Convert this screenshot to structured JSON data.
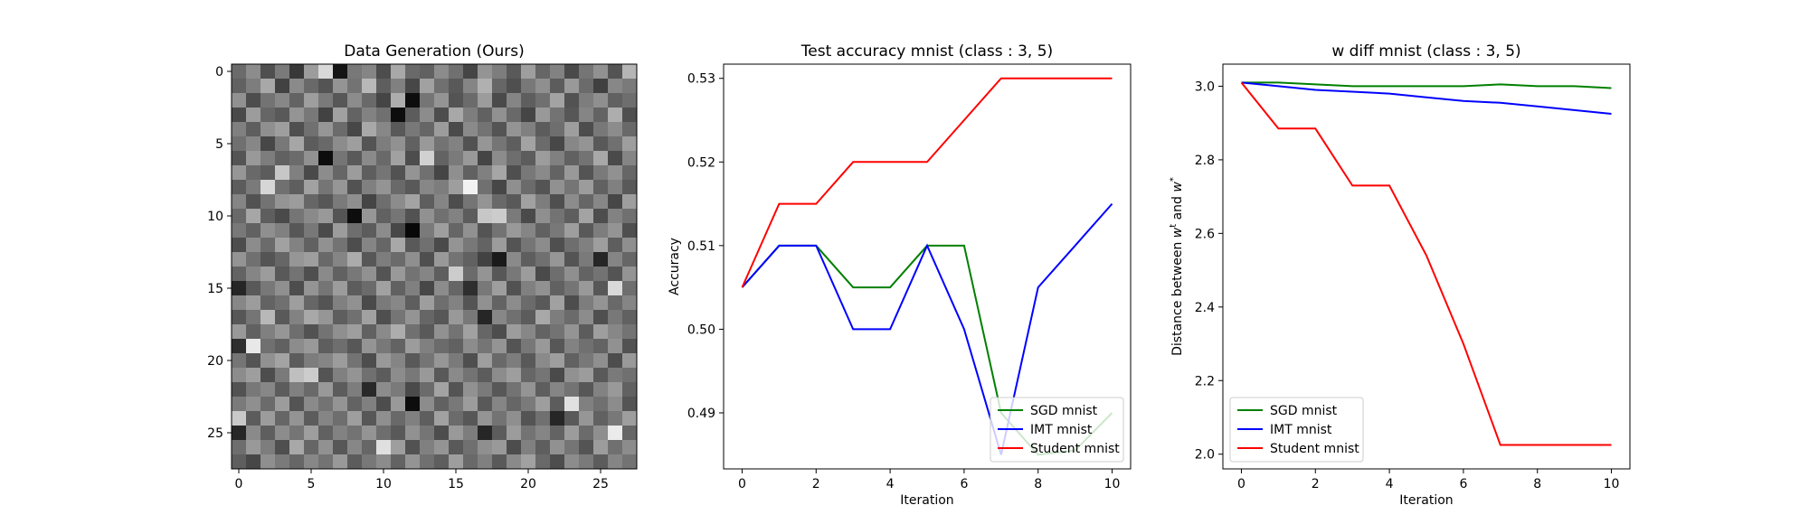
{
  "chart_data": [
    {
      "type": "heatmap",
      "title": "Data Generation (Ours)",
      "rows": 28,
      "cols": 28,
      "colormap": "gray",
      "xticks": [
        0,
        5,
        10,
        15,
        20,
        25
      ],
      "yticks": [
        0,
        5,
        10,
        15,
        20,
        25
      ],
      "xlim": [
        -0.5,
        27.5
      ],
      "ylim": [
        27.5,
        -0.5
      ],
      "values": [
        [
          0.42,
          0.55,
          0.31,
          0.48,
          0.22,
          0.61,
          0.85,
          0.08,
          0.47,
          0.52,
          0.3,
          0.66,
          0.41,
          0.38,
          0.55,
          0.44,
          0.27,
          0.58,
          0.49,
          0.35,
          0.62,
          0.4,
          0.51,
          0.29,
          0.46,
          0.57,
          0.33,
          0.71
        ],
        [
          0.38,
          0.49,
          0.66,
          0.26,
          0.54,
          0.41,
          0.33,
          0.58,
          0.45,
          0.72,
          0.37,
          0.5,
          0.28,
          0.63,
          0.44,
          0.35,
          0.52,
          0.69,
          0.4,
          0.31,
          0.47,
          0.56,
          0.36,
          0.6,
          0.42,
          0.25,
          0.53,
          0.48
        ],
        [
          0.57,
          0.3,
          0.45,
          0.53,
          0.39,
          0.62,
          0.48,
          0.34,
          0.55,
          0.41,
          0.27,
          0.68,
          0.05,
          0.46,
          0.58,
          0.33,
          0.42,
          0.61,
          0.29,
          0.52,
          0.37,
          0.44,
          0.64,
          0.32,
          0.49,
          0.56,
          0.38,
          0.43
        ],
        [
          0.29,
          0.61,
          0.4,
          0.35,
          0.58,
          0.47,
          0.26,
          0.63,
          0.39,
          0.51,
          0.44,
          0.05,
          0.36,
          0.55,
          0.3,
          0.66,
          0.49,
          0.38,
          0.57,
          0.41,
          0.27,
          0.6,
          0.45,
          0.34,
          0.52,
          0.39,
          0.68,
          0.31
        ],
        [
          0.5,
          0.37,
          0.56,
          0.62,
          0.31,
          0.44,
          0.59,
          0.42,
          0.28,
          0.66,
          0.53,
          0.35,
          0.47,
          0.4,
          0.61,
          0.29,
          0.54,
          0.45,
          0.33,
          0.58,
          0.5,
          0.36,
          0.43,
          0.62,
          0.3,
          0.47,
          0.55,
          0.41
        ],
        [
          0.44,
          0.53,
          0.28,
          0.47,
          0.65,
          0.36,
          0.41,
          0.55,
          0.62,
          0.33,
          0.49,
          0.57,
          0.38,
          0.6,
          0.45,
          0.51,
          0.32,
          0.59,
          0.46,
          0.37,
          0.64,
          0.42,
          0.28,
          0.53,
          0.58,
          0.35,
          0.44,
          0.62
        ],
        [
          0.33,
          0.6,
          0.49,
          0.38,
          0.42,
          0.57,
          0.05,
          0.46,
          0.35,
          0.54,
          0.41,
          0.63,
          0.3,
          0.82,
          0.39,
          0.48,
          0.6,
          0.27,
          0.55,
          0.43,
          0.36,
          0.61,
          0.5,
          0.38,
          0.45,
          0.66,
          0.29,
          0.52
        ],
        [
          0.59,
          0.41,
          0.36,
          0.78,
          0.5,
          0.29,
          0.55,
          0.4,
          0.61,
          0.37,
          0.46,
          0.32,
          0.58,
          0.44,
          0.27,
          0.56,
          0.38,
          0.5,
          0.65,
          0.31,
          0.47,
          0.54,
          0.39,
          0.6,
          0.33,
          0.48,
          0.57,
          0.4
        ],
        [
          0.36,
          0.48,
          0.84,
          0.44,
          0.37,
          0.63,
          0.46,
          0.59,
          0.32,
          0.5,
          0.58,
          0.41,
          0.35,
          0.53,
          0.49,
          0.62,
          0.95,
          0.44,
          0.28,
          0.56,
          0.42,
          0.33,
          0.57,
          0.46,
          0.61,
          0.38,
          0.5,
          0.35
        ],
        [
          0.52,
          0.32,
          0.45,
          0.58,
          0.61,
          0.4,
          0.34,
          0.48,
          0.56,
          0.27,
          0.43,
          0.55,
          0.64,
          0.37,
          0.52,
          0.3,
          0.46,
          0.58,
          0.41,
          0.35,
          0.63,
          0.49,
          0.31,
          0.55,
          0.4,
          0.53,
          0.28,
          0.62
        ],
        [
          0.41,
          0.65,
          0.37,
          0.29,
          0.46,
          0.54,
          0.6,
          0.33,
          0.05,
          0.59,
          0.38,
          0.46,
          0.32,
          0.57,
          0.44,
          0.51,
          0.36,
          0.78,
          0.8,
          0.48,
          0.29,
          0.56,
          0.45,
          0.37,
          0.64,
          0.3,
          0.51,
          0.44
        ],
        [
          0.47,
          0.38,
          0.56,
          0.5,
          0.34,
          0.47,
          0.29,
          0.61,
          0.43,
          0.36,
          0.55,
          0.28,
          0.03,
          0.48,
          0.62,
          0.4,
          0.57,
          0.33,
          0.45,
          0.6,
          0.52,
          0.38,
          0.47,
          0.62,
          0.35,
          0.49,
          0.58,
          0.31
        ],
        [
          0.3,
          0.55,
          0.42,
          0.63,
          0.51,
          0.38,
          0.57,
          0.45,
          0.3,
          0.52,
          0.4,
          0.66,
          0.35,
          0.44,
          0.29,
          0.58,
          0.47,
          0.39,
          0.61,
          0.33,
          0.46,
          0.55,
          0.31,
          0.43,
          0.5,
          0.62,
          0.37,
          0.56
        ],
        [
          0.58,
          0.44,
          0.33,
          0.4,
          0.59,
          0.62,
          0.41,
          0.52,
          0.67,
          0.34,
          0.49,
          0.42,
          0.56,
          0.31,
          0.6,
          0.45,
          0.38,
          0.26,
          0.1,
          0.54,
          0.37,
          0.44,
          0.59,
          0.33,
          0.48,
          0.15,
          0.52,
          0.4
        ],
        [
          0.39,
          0.52,
          0.61,
          0.35,
          0.45,
          0.31,
          0.54,
          0.38,
          0.47,
          0.57,
          0.33,
          0.6,
          0.45,
          0.52,
          0.37,
          0.8,
          0.42,
          0.58,
          0.34,
          0.47,
          0.61,
          0.29,
          0.43,
          0.56,
          0.39,
          0.45,
          0.33,
          0.58
        ],
        [
          0.15,
          0.35,
          0.47,
          0.56,
          0.3,
          0.58,
          0.46,
          0.61,
          0.36,
          0.42,
          0.63,
          0.38,
          0.5,
          0.28,
          0.55,
          0.4,
          0.18,
          0.47,
          0.62,
          0.32,
          0.5,
          0.57,
          0.38,
          0.46,
          0.6,
          0.34,
          0.85,
          0.43
        ],
        [
          0.53,
          0.61,
          0.39,
          0.44,
          0.62,
          0.4,
          0.33,
          0.5,
          0.57,
          0.29,
          0.48,
          0.53,
          0.37,
          0.62,
          0.43,
          0.51,
          0.33,
          0.57,
          0.39,
          0.55,
          0.42,
          0.35,
          0.63,
          0.3,
          0.49,
          0.58,
          0.41,
          0.52
        ],
        [
          0.34,
          0.46,
          0.72,
          0.35,
          0.51,
          0.66,
          0.59,
          0.37,
          0.44,
          0.63,
          0.31,
          0.46,
          0.58,
          0.4,
          0.34,
          0.6,
          0.47,
          0.15,
          0.53,
          0.44,
          0.36,
          0.66,
          0.49,
          0.42,
          0.55,
          0.31,
          0.47,
          0.38
        ],
        [
          0.6,
          0.38,
          0.5,
          0.59,
          0.43,
          0.32,
          0.45,
          0.56,
          0.62,
          0.38,
          0.54,
          0.68,
          0.44,
          0.35,
          0.57,
          0.45,
          0.63,
          0.4,
          0.3,
          0.61,
          0.53,
          0.39,
          0.45,
          0.58,
          0.36,
          0.62,
          0.53,
          0.45
        ],
        [
          0.18,
          0.91,
          0.44,
          0.38,
          0.55,
          0.6,
          0.37,
          0.43,
          0.34,
          0.58,
          0.47,
          0.39,
          0.61,
          0.5,
          0.42,
          0.38,
          0.55,
          0.46,
          0.58,
          0.33,
          0.47,
          0.6,
          0.34,
          0.51,
          0.44,
          0.39,
          0.57,
          0.32
        ],
        [
          0.46,
          0.33,
          0.57,
          0.64,
          0.36,
          0.49,
          0.52,
          0.61,
          0.45,
          0.3,
          0.6,
          0.52,
          0.35,
          0.46,
          0.59,
          0.48,
          0.31,
          0.62,
          0.41,
          0.49,
          0.35,
          0.54,
          0.62,
          0.38,
          0.47,
          0.56,
          0.3,
          0.6
        ],
        [
          0.55,
          0.62,
          0.3,
          0.48,
          0.75,
          0.8,
          0.33,
          0.5,
          0.58,
          0.44,
          0.36,
          0.55,
          0.47,
          0.6,
          0.35,
          0.54,
          0.45,
          0.36,
          0.55,
          0.62,
          0.4,
          0.46,
          0.29,
          0.57,
          0.61,
          0.35,
          0.48,
          0.44
        ],
        [
          0.32,
          0.47,
          0.53,
          0.36,
          0.5,
          0.41,
          0.6,
          0.36,
          0.49,
          0.16,
          0.55,
          0.48,
          0.29,
          0.42,
          0.64,
          0.33,
          0.57,
          0.48,
          0.34,
          0.45,
          0.58,
          0.37,
          0.52,
          0.45,
          0.34,
          0.51,
          0.6,
          0.38
        ],
        [
          0.48,
          0.56,
          0.42,
          0.61,
          0.33,
          0.54,
          0.45,
          0.58,
          0.39,
          0.5,
          0.3,
          0.6,
          0.05,
          0.55,
          0.38,
          0.47,
          0.61,
          0.35,
          0.52,
          0.4,
          0.48,
          0.62,
          0.36,
          0.88,
          0.5,
          0.44,
          0.55,
          0.33
        ],
        [
          0.79,
          0.36,
          0.61,
          0.4,
          0.58,
          0.36,
          0.52,
          0.43,
          0.62,
          0.34,
          0.56,
          0.41,
          0.5,
          0.37,
          0.63,
          0.42,
          0.34,
          0.58,
          0.45,
          0.56,
          0.33,
          0.44,
          0.15,
          0.35,
          0.59,
          0.38,
          0.47,
          0.62
        ],
        [
          0.15,
          0.54,
          0.37,
          0.55,
          0.46,
          0.62,
          0.38,
          0.51,
          0.45,
          0.58,
          0.43,
          0.35,
          0.57,
          0.46,
          0.3,
          0.6,
          0.49,
          0.15,
          0.36,
          0.61,
          0.45,
          0.52,
          0.39,
          0.61,
          0.42,
          0.56,
          0.92,
          0.4
        ],
        [
          0.43,
          0.6,
          0.49,
          0.31,
          0.66,
          0.4,
          0.57,
          0.34,
          0.53,
          0.4,
          0.88,
          0.62,
          0.32,
          0.5,
          0.58,
          0.35,
          0.44,
          0.56,
          0.6,
          0.3,
          0.5,
          0.37,
          0.57,
          0.46,
          0.33,
          0.61,
          0.44,
          0.55
        ],
        [
          0.37,
          0.28,
          0.56,
          0.48,
          0.4,
          0.53,
          0.45,
          0.6,
          0.36,
          0.47,
          0.55,
          0.39,
          0.58,
          0.44,
          0.37,
          0.62,
          0.41,
          0.5,
          0.35,
          0.54,
          0.63,
          0.41,
          0.3,
          0.55,
          0.48,
          0.36,
          0.52,
          0.45
        ]
      ]
    },
    {
      "type": "line",
      "title": "Test accuracy mnist (class : 3, 5)",
      "xlabel": "Iteration",
      "ylabel": "Accuracy",
      "xlim": [
        -0.5,
        10.5
      ],
      "ylim": [
        0.4833,
        0.5317
      ],
      "xticks": [
        0,
        2,
        4,
        6,
        8,
        10
      ],
      "yticks": [
        0.49,
        0.5,
        0.51,
        0.52,
        0.53
      ],
      "ytick_labels": [
        "0.49",
        "0.50",
        "0.51",
        "0.52",
        "0.53"
      ],
      "legend_position": "lower-right",
      "x": [
        0,
        1,
        2,
        3,
        4,
        5,
        6,
        7,
        8,
        9,
        10
      ],
      "series": [
        {
          "name": "SGD mnist",
          "color": "#008000",
          "values": [
            0.505,
            0.51,
            0.51,
            0.505,
            0.505,
            0.51,
            0.51,
            0.49,
            0.485,
            0.4855,
            0.49
          ]
        },
        {
          "name": "IMT mnist",
          "color": "#0000ff",
          "values": [
            0.505,
            0.51,
            0.51,
            0.5,
            0.5,
            0.51,
            0.5,
            0.485,
            0.505,
            0.51,
            0.515
          ]
        },
        {
          "name": "Student mnist",
          "color": "#ff0000",
          "values": [
            0.505,
            0.515,
            0.515,
            0.52,
            0.52,
            0.52,
            0.525,
            0.53,
            0.53,
            0.53,
            0.53
          ]
        }
      ]
    },
    {
      "type": "line",
      "title": "w diff mnist (class : 3, 5)",
      "xlabel": "Iteration",
      "ylabel": "Distance between w^t and w^*",
      "ylabel_parts": {
        "prefix": "Distance between ",
        "w1": "w",
        "sup1": "t",
        "mid": " and ",
        "w2": "w",
        "sup2": "*"
      },
      "xlim": [
        -0.5,
        10.5
      ],
      "ylim": [
        1.96,
        3.06
      ],
      "xticks": [
        0,
        2,
        4,
        6,
        8,
        10
      ],
      "yticks": [
        2.0,
        2.2,
        2.4,
        2.6,
        2.8,
        3.0
      ],
      "ytick_labels": [
        "2.0",
        "2.2",
        "2.4",
        "2.6",
        "2.8",
        "3.0"
      ],
      "legend_position": "lower-left",
      "x": [
        0,
        1,
        2,
        3,
        4,
        5,
        6,
        7,
        8,
        9,
        10
      ],
      "series": [
        {
          "name": "SGD mnist",
          "color": "#008000",
          "values": [
            3.01,
            3.01,
            3.005,
            3.0,
            3.0,
            3.0,
            3.0,
            3.005,
            3.0,
            3.0,
            2.995
          ]
        },
        {
          "name": "IMT mnist",
          "color": "#0000ff",
          "values": [
            3.01,
            3.0,
            2.99,
            2.985,
            2.98,
            2.97,
            2.96,
            2.955,
            2.945,
            2.935,
            2.925
          ]
        },
        {
          "name": "Student mnist",
          "color": "#ff0000",
          "values": [
            3.01,
            2.885,
            2.885,
            2.73,
            2.73,
            2.54,
            2.3,
            2.025,
            2.025,
            2.025,
            2.025
          ]
        }
      ]
    }
  ]
}
